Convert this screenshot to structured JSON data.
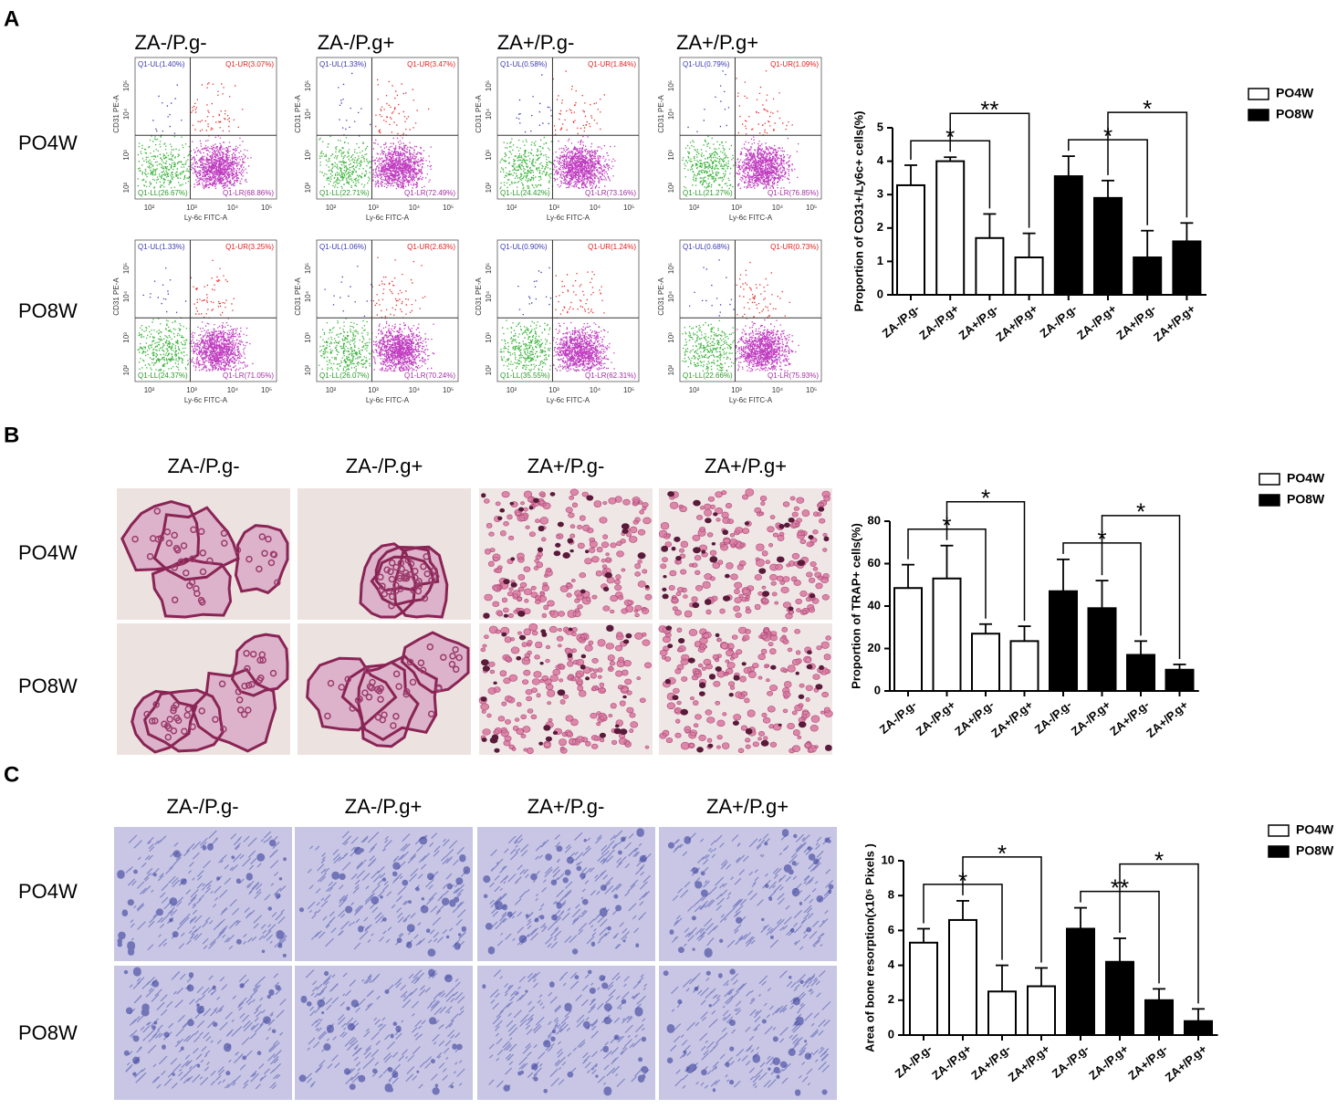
{
  "panels": [
    {
      "label": "A",
      "columns": [
        "ZA-/P.g-",
        "ZA-/P.g+",
        "ZA+/P.g-",
        "ZA+/P.g+"
      ],
      "rows": [
        "PO4W",
        "PO8W"
      ],
      "flow": {
        "x_label": "Ly-6c FITC-A",
        "y_label": "CD31 PE-A",
        "ticks": [
          "10²",
          "10³",
          "10⁴",
          "10⁵"
        ],
        "quadrants": [
          [
            {
              "ul": "Q1-UL(1.40%)",
              "ur": "Q1-UR(3.07%)",
              "ll": "Q1-LL(26.67%)",
              "lr": "Q1-LR(68.86%)"
            },
            {
              "ul": "Q1-UL(1.33%)",
              "ur": "Q1-UR(3.47%)",
              "ll": "Q1-LL(22.71%)",
              "lr": "Q1-LR(72.49%)"
            },
            {
              "ul": "Q1-UL(0.58%)",
              "ur": "Q1-UR(1.84%)",
              "ll": "Q1-LL(24.42%)",
              "lr": "Q1-LR(73.16%)"
            },
            {
              "ul": "Q1-UL(0.79%)",
              "ur": "Q1-UR(1.09%)",
              "ll": "Q1-LL(21.27%)",
              "lr": "Q1-LR(76.85%)"
            }
          ],
          [
            {
              "ul": "Q1-UL(1.33%)",
              "ur": "Q1-UR(3.25%)",
              "ll": "Q1-LL(24.37%)",
              "lr": "Q1-LR(71.05%)"
            },
            {
              "ul": "Q1-UL(1.06%)",
              "ur": "Q1-UR(2.63%)",
              "ll": "Q1-LL(26.07%)",
              "lr": "Q1-LR(70.24%)"
            },
            {
              "ul": "Q1-UL(0.90%)",
              "ur": "Q1-UR(1.24%)",
              "ll": "Q1-LL(35.55%)",
              "lr": "Q1-LR(62.31%)"
            },
            {
              "ul": "Q1-UL(0.68%)",
              "ur": "Q1-UR(0.73%)",
              "ll": "Q1-LL(22.66%)",
              "lr": "Q1-LR(75.93%)"
            }
          ]
        ]
      }
    },
    {
      "label": "B",
      "columns": [
        "ZA-/P.g-",
        "ZA-/P.g+",
        "ZA+/P.g-",
        "ZA+/P.g+"
      ],
      "rows": [
        "PO4W",
        "PO8W"
      ]
    },
    {
      "label": "C",
      "columns": [
        "ZA-/P.g-",
        "ZA-/P.g+",
        "ZA+/P.g-",
        "ZA+/P.g+"
      ],
      "rows": [
        "PO4W",
        "PO8W"
      ]
    }
  ],
  "chart_data": [
    {
      "type": "bar",
      "y_label": "Proportion of CD31+/Ly6c+ cells(%)",
      "categories": [
        "ZA-/P.g-",
        "ZA-/P.g+",
        "ZA+/P.g-",
        "ZA+/P.g+",
        "ZA-/P.g-",
        "ZA-/P.g+",
        "ZA+/P.g-",
        "ZA+/P.g+"
      ],
      "series": [
        {
          "name": "PO4W",
          "color": "#ffffff",
          "values": [
            3.28,
            4.0,
            1.7,
            1.12,
            null,
            null,
            null,
            null
          ],
          "errors": [
            0.6,
            0.12,
            0.72,
            0.72,
            null,
            null,
            null,
            null
          ]
        },
        {
          "name": "PO8W",
          "color": "#000000",
          "values": [
            null,
            null,
            null,
            null,
            3.55,
            2.9,
            1.12,
            1.6
          ],
          "errors": [
            null,
            null,
            null,
            null,
            0.6,
            0.52,
            0.8,
            0.55
          ]
        }
      ],
      "ylim": [
        0,
        5
      ],
      "yticks": [
        0,
        1,
        2,
        3,
        4,
        5
      ],
      "legend": "right",
      "annotations": [
        {
          "from": 0,
          "to": 2,
          "label": "*"
        },
        {
          "from": 1,
          "to": 3,
          "label": "**"
        },
        {
          "from": 4,
          "to": 6,
          "label": "*"
        },
        {
          "from": 5,
          "to": 7,
          "label": "*"
        }
      ]
    },
    {
      "type": "bar",
      "y_label": "Proportion of TRAP+ cells(%)",
      "categories": [
        "ZA-/P.g-",
        "ZA-/P.g+",
        "ZA+/P.g-",
        "ZA+/P.g+",
        "ZA-/P.g-",
        "ZA-/P.g+",
        "ZA+/P.g-",
        "ZA+/P.g+"
      ],
      "series": [
        {
          "name": "PO4W",
          "color": "#ffffff",
          "values": [
            48.5,
            53,
            27,
            23.5,
            null,
            null,
            null,
            null
          ],
          "errors": [
            11,
            15.5,
            4.5,
            7,
            null,
            null,
            null,
            null
          ]
        },
        {
          "name": "PO8W",
          "color": "#000000",
          "values": [
            null,
            null,
            null,
            null,
            47,
            39,
            17,
            10
          ],
          "errors": [
            null,
            null,
            null,
            null,
            15,
            13,
            6.5,
            2.5
          ]
        }
      ],
      "ylim": [
        0,
        80
      ],
      "yticks": [
        0,
        20,
        40,
        60,
        80
      ],
      "legend": "right",
      "annotations": [
        {
          "from": 0,
          "to": 2,
          "label": "*"
        },
        {
          "from": 1,
          "to": 3,
          "label": "*"
        },
        {
          "from": 4,
          "to": 6,
          "label": "*"
        },
        {
          "from": 5,
          "to": 7,
          "label": "*"
        }
      ]
    },
    {
      "type": "bar",
      "y_label": "Area of bone resorption(x10⁵ Pixels )",
      "categories": [
        "ZA-/P.g-",
        "ZA-/P.g+",
        "ZA+/P.g-",
        "ZA+/P.g+",
        "ZA-/P.g-",
        "ZA-/P.g+",
        "ZA+/P.g-",
        "ZA+/P.g+"
      ],
      "series": [
        {
          "name": "PO4W",
          "color": "#ffffff",
          "values": [
            5.3,
            6.6,
            2.5,
            2.8,
            null,
            null,
            null,
            null
          ],
          "errors": [
            0.8,
            1.1,
            1.5,
            1.05,
            null,
            null,
            null,
            null
          ]
        },
        {
          "name": "PO8W",
          "color": "#000000",
          "values": [
            null,
            null,
            null,
            null,
            6.1,
            4.2,
            2.0,
            0.8
          ],
          "errors": [
            null,
            null,
            null,
            null,
            1.2,
            1.35,
            0.65,
            0.7
          ]
        }
      ],
      "ylim": [
        0,
        10
      ],
      "yticks": [
        0,
        2,
        4,
        6,
        8,
        10
      ],
      "legend": "right",
      "annotations": [
        {
          "from": 0,
          "to": 2,
          "label": "*"
        },
        {
          "from": 1,
          "to": 3,
          "label": "*"
        },
        {
          "from": 4,
          "to": 6,
          "label": "**"
        },
        {
          "from": 5,
          "to": 7,
          "label": "*"
        }
      ]
    }
  ]
}
